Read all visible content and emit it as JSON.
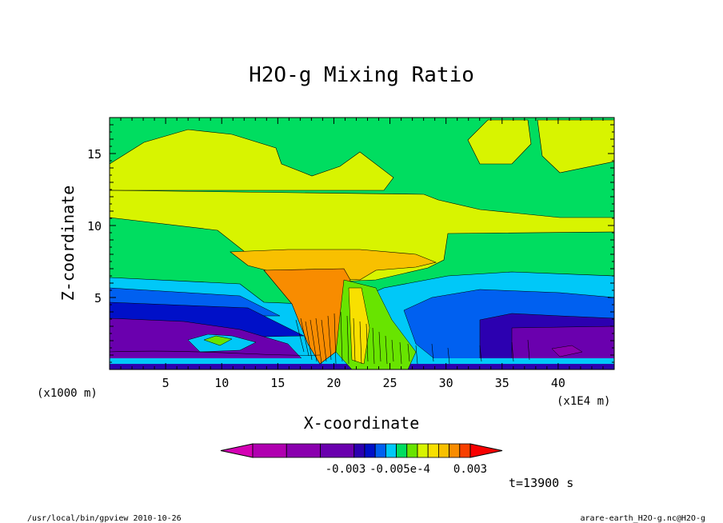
{
  "chart_data": {
    "type": "heatmap",
    "title": "H2O-g Mixing Ratio",
    "xlabel": "X-coordinate",
    "ylabel": "Z-coordinate",
    "x_unit_left": "(x1000 m)",
    "x_unit_right": "(x1E4 m)",
    "xlim": [
      0,
      45
    ],
    "ylim": [
      0,
      17.5
    ],
    "x_ticks": [
      5,
      10,
      15,
      20,
      25,
      30,
      35,
      40
    ],
    "y_ticks": [
      5,
      10,
      15
    ],
    "colorbar": {
      "labels": [
        "-0.003",
        "-0.005e-4",
        "0.003"
      ],
      "colors": [
        "#d400b4",
        "#b000b0",
        "#8a00ae",
        "#6a00ae",
        "#2c00b0",
        "#0010c8",
        "#0060f0",
        "#00c8f8",
        "#00dd60",
        "#68e400",
        "#d8f400",
        "#f8e000",
        "#f8c000",
        "#f88c00",
        "#f84000",
        "#f80000"
      ]
    },
    "time_label": "t=13900 s",
    "footer_left": "/usr/local/bin/gpview  2010-10-26",
    "footer_right": "arare-earth_H2O-g.nc@H2O-g"
  }
}
